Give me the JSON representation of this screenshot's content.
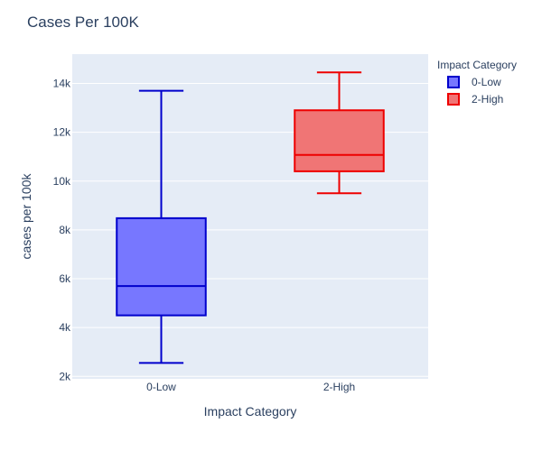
{
  "chart_data": {
    "type": "box",
    "title": "Cases Per 100K",
    "xlabel": "Impact Category",
    "ylabel": "cases per 100k",
    "categories": [
      "0-Low",
      "2-High"
    ],
    "ylim": [
      1900,
      15200
    ],
    "yticks": [
      {
        "value": 2000,
        "label": "2k"
      },
      {
        "value": 4000,
        "label": "4k"
      },
      {
        "value": 6000,
        "label": "6k"
      },
      {
        "value": 8000,
        "label": "8k"
      },
      {
        "value": 10000,
        "label": "10k"
      },
      {
        "value": 12000,
        "label": "12k"
      },
      {
        "value": 14000,
        "label": "14k"
      }
    ],
    "grid": true,
    "legend": {
      "title": "Impact Category",
      "placement": "top-right"
    },
    "series": [
      {
        "name": "0-Low",
        "category": "0-Low",
        "color": "#0000cc",
        "fill": "#7777ff",
        "min": 2550,
        "q1": 4500,
        "median": 5700,
        "q3": 8480,
        "max": 13700
      },
      {
        "name": "2-High",
        "category": "2-High",
        "color": "#ee0000",
        "fill": "#f07575",
        "min": 9500,
        "q1": 10400,
        "median": 11070,
        "q3": 12900,
        "max": 14450
      }
    ]
  }
}
